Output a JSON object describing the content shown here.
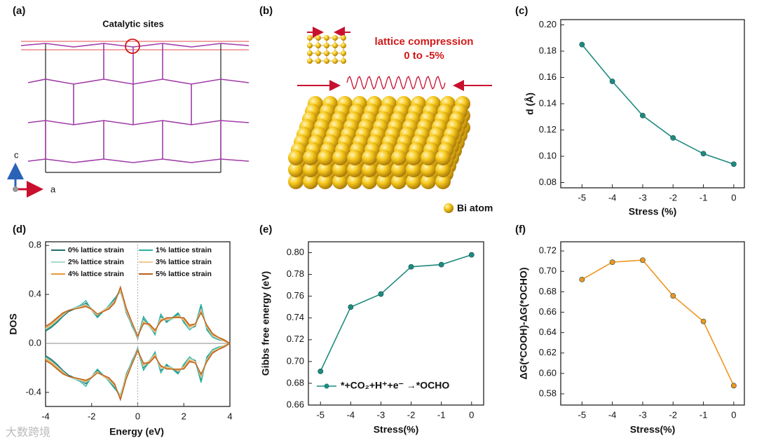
{
  "figure": {
    "panel_labels": [
      "(a)",
      "(b)",
      "(c)",
      "(d)",
      "(e)",
      "(f)"
    ],
    "a": {
      "title": "Catalytic sites",
      "axis_c": "c",
      "axis_a": "a"
    },
    "b": {
      "annotation": "lattice compression",
      "range": "0 to -5%",
      "legend": "Bi atom"
    },
    "watermark": "大数跨境"
  },
  "chart_data": [
    {
      "type": "line",
      "xlabel": "Stress (%)",
      "ylabel": "d (Å)",
      "color": "#1f8a80",
      "x": [
        -5,
        -4,
        -3,
        -2,
        -1,
        0
      ],
      "values": [
        0.185,
        0.157,
        0.131,
        0.114,
        0.102,
        0.094
      ],
      "xlim": [
        -5.7,
        0.35
      ],
      "ylim": [
        0.076,
        0.204
      ],
      "xticks": [
        -5,
        -4,
        -3,
        -2,
        -1,
        0
      ],
      "yticks": [
        0.08,
        {
          "value": 0.1,
          "label": "0.10"
        },
        0.12,
        0.14,
        0.16,
        0.18,
        {
          "value": 0.2,
          "label": "0.20"
        }
      ]
    },
    {
      "type": "dos",
      "xlabel": "Energy (eV)",
      "ylabel": "DOS",
      "x": [
        -4,
        -3.75,
        -3.5,
        -3.25,
        -3,
        -2.75,
        -2.5,
        -2.25,
        -2,
        -1.75,
        -1.5,
        -1.25,
        -1,
        -0.75,
        -0.5,
        -0.25,
        0,
        0.25,
        0.5,
        0.75,
        1,
        1.25,
        1.5,
        1.75,
        2,
        2.25,
        2.5,
        2.75,
        3,
        3.25,
        3.5,
        3.75,
        4
      ],
      "xlim": [
        -4,
        4
      ],
      "ylim": [
        -0.515,
        0.83
      ],
      "xticks": [
        -4,
        -2,
        0,
        2,
        4
      ],
      "yticks": [
        -0.4,
        {
          "value": 0,
          "label": "0.0"
        },
        0.4,
        0.8
      ],
      "series": [
        {
          "name": "0% lattice strain",
          "color": "#1d6f6a",
          "values": [
            0.1,
            0.13,
            0.17,
            0.22,
            0.26,
            0.28,
            0.3,
            0.33,
            0.28,
            0.22,
            0.27,
            0.3,
            0.36,
            0.44,
            0.25,
            0.15,
            0.04,
            0.2,
            0.14,
            0.08,
            0.22,
            0.18,
            0.2,
            0.24,
            0.18,
            0.12,
            0.14,
            0.3,
            0.12,
            0.06,
            0.04,
            0.02,
            0.0
          ],
          "values_down": [
            -0.1,
            -0.13,
            -0.17,
            -0.22,
            -0.26,
            -0.28,
            -0.3,
            -0.33,
            -0.28,
            -0.22,
            -0.27,
            -0.3,
            -0.36,
            -0.44,
            -0.25,
            -0.15,
            -0.04,
            -0.2,
            -0.14,
            -0.08,
            -0.22,
            -0.18,
            -0.2,
            -0.24,
            -0.18,
            -0.12,
            -0.14,
            -0.3,
            -0.12,
            -0.06,
            -0.04,
            -0.02,
            0.0
          ]
        },
        {
          "name": "1% lattice strain",
          "color": "#2bb3a3",
          "values": [
            0.11,
            0.14,
            0.18,
            0.23,
            0.27,
            0.29,
            0.31,
            0.35,
            0.27,
            0.21,
            0.26,
            0.31,
            0.37,
            0.42,
            0.27,
            0.14,
            0.05,
            0.22,
            0.15,
            0.07,
            0.24,
            0.17,
            0.21,
            0.25,
            0.17,
            0.11,
            0.15,
            0.32,
            0.11,
            0.05,
            0.03,
            0.02,
            0.0
          ],
          "values_down": [
            -0.11,
            -0.14,
            -0.18,
            -0.23,
            -0.27,
            -0.29,
            -0.31,
            -0.35,
            -0.27,
            -0.21,
            -0.26,
            -0.31,
            -0.37,
            -0.42,
            -0.27,
            -0.14,
            -0.05,
            -0.22,
            -0.15,
            -0.07,
            -0.24,
            -0.17,
            -0.21,
            -0.25,
            -0.17,
            -0.11,
            -0.15,
            -0.32,
            -0.11,
            -0.05,
            -0.03,
            -0.02,
            0.0
          ]
        },
        {
          "name": "2% lattice strain",
          "color": "#a6dccd",
          "values": [
            0.12,
            0.15,
            0.19,
            0.23,
            0.27,
            0.29,
            0.3,
            0.32,
            0.28,
            0.23,
            0.27,
            0.3,
            0.35,
            0.43,
            0.26,
            0.16,
            0.05,
            0.19,
            0.14,
            0.09,
            0.21,
            0.19,
            0.2,
            0.23,
            0.19,
            0.12,
            0.15,
            0.28,
            0.13,
            0.06,
            0.04,
            0.02,
            0.0
          ],
          "values_down": [
            -0.12,
            -0.15,
            -0.19,
            -0.23,
            -0.27,
            -0.29,
            -0.3,
            -0.32,
            -0.28,
            -0.23,
            -0.27,
            -0.3,
            -0.35,
            -0.43,
            -0.26,
            -0.16,
            -0.05,
            -0.19,
            -0.14,
            -0.09,
            -0.21,
            -0.19,
            -0.2,
            -0.23,
            -0.19,
            -0.12,
            -0.15,
            -0.28,
            -0.13,
            -0.06,
            -0.04,
            -0.02,
            0.0
          ]
        },
        {
          "name": "3% lattice strain",
          "color": "#f2c796",
          "values": [
            0.12,
            0.15,
            0.19,
            0.24,
            0.27,
            0.28,
            0.3,
            0.31,
            0.27,
            0.23,
            0.27,
            0.29,
            0.34,
            0.44,
            0.27,
            0.16,
            0.05,
            0.18,
            0.15,
            0.09,
            0.2,
            0.19,
            0.21,
            0.22,
            0.19,
            0.13,
            0.15,
            0.27,
            0.14,
            0.07,
            0.04,
            0.02,
            0.0
          ],
          "values_down": [
            -0.12,
            -0.15,
            -0.19,
            -0.24,
            -0.27,
            -0.28,
            -0.3,
            -0.31,
            -0.27,
            -0.23,
            -0.27,
            -0.29,
            -0.34,
            -0.44,
            -0.27,
            -0.16,
            -0.05,
            -0.18,
            -0.15,
            -0.09,
            -0.2,
            -0.19,
            -0.21,
            -0.22,
            -0.19,
            -0.13,
            -0.15,
            -0.27,
            -0.14,
            -0.07,
            -0.04,
            -0.02,
            0.0
          ]
        },
        {
          "name": "4% lattice strain",
          "color": "#e8953a",
          "values": [
            0.13,
            0.16,
            0.2,
            0.24,
            0.27,
            0.28,
            0.29,
            0.31,
            0.28,
            0.24,
            0.26,
            0.29,
            0.34,
            0.45,
            0.28,
            0.17,
            0.06,
            0.17,
            0.15,
            0.1,
            0.19,
            0.2,
            0.21,
            0.22,
            0.2,
            0.14,
            0.16,
            0.26,
            0.14,
            0.07,
            0.05,
            0.02,
            0.0
          ],
          "values_down": [
            -0.13,
            -0.16,
            -0.2,
            -0.24,
            -0.27,
            -0.28,
            -0.29,
            -0.31,
            -0.28,
            -0.24,
            -0.26,
            -0.29,
            -0.34,
            -0.45,
            -0.28,
            -0.17,
            -0.06,
            -0.17,
            -0.15,
            -0.1,
            -0.19,
            -0.2,
            -0.21,
            -0.22,
            -0.2,
            -0.14,
            -0.16,
            -0.26,
            -0.14,
            -0.07,
            -0.05,
            -0.02,
            0.0
          ]
        },
        {
          "name": "5% lattice strain",
          "color": "#b8621c",
          "values": [
            0.14,
            0.17,
            0.21,
            0.25,
            0.27,
            0.28,
            0.29,
            0.3,
            0.28,
            0.24,
            0.26,
            0.28,
            0.33,
            0.46,
            0.29,
            0.17,
            0.06,
            0.16,
            0.16,
            0.11,
            0.18,
            0.21,
            0.21,
            0.21,
            0.21,
            0.15,
            0.16,
            0.25,
            0.15,
            0.08,
            0.05,
            0.03,
            0.0
          ],
          "values_down": [
            -0.14,
            -0.17,
            -0.21,
            -0.25,
            -0.27,
            -0.28,
            -0.29,
            -0.3,
            -0.28,
            -0.24,
            -0.26,
            -0.28,
            -0.33,
            -0.46,
            -0.29,
            -0.17,
            -0.06,
            -0.16,
            -0.16,
            -0.11,
            -0.18,
            -0.21,
            -0.21,
            -0.21,
            -0.21,
            -0.15,
            -0.16,
            -0.25,
            -0.15,
            -0.08,
            -0.05,
            -0.03,
            0.0
          ]
        }
      ]
    },
    {
      "type": "line",
      "xlabel": "Stress(%)",
      "ylabel": "Gibbs free energy (eV)",
      "x": [
        -5,
        -4,
        -3,
        -2,
        -1,
        0
      ],
      "series": [
        {
          "name": "*+CO₂+H⁺+e⁻ →*OCHO",
          "color": "#1f8a80",
          "values": [
            0.691,
            0.75,
            0.762,
            0.787,
            0.789,
            0.798
          ]
        }
      ],
      "xlim": [
        -5.4,
        0.4
      ],
      "ylim": [
        0.66,
        0.81
      ],
      "xticks": [
        -5,
        -4,
        -3,
        -2,
        -1,
        0
      ],
      "yticks": [
        0.66,
        0.68,
        {
          "value": 0.7,
          "label": "0.70"
        },
        0.72,
        0.74,
        0.76,
        0.78,
        {
          "value": 0.8,
          "label": "0.80"
        }
      ]
    },
    {
      "type": "line",
      "xlabel": "Stress(%)",
      "ylabel": "ΔG(*COOH)-ΔG(*OCHO)",
      "color": "#f0951e",
      "x": [
        -5,
        -4,
        -3,
        -2,
        -1,
        0
      ],
      "values": [
        0.692,
        0.709,
        0.711,
        0.676,
        0.651,
        0.588
      ],
      "xlim": [
        -5.7,
        0.35
      ],
      "ylim": [
        0.569,
        0.729
      ],
      "xticks": [
        -5,
        -4,
        -3,
        -2,
        -1,
        0
      ],
      "yticks": [
        0.58,
        {
          "value": 0.6,
          "label": "0.60"
        },
        0.62,
        0.64,
        0.66,
        0.68,
        {
          "value": 0.7,
          "label": "0.70"
        },
        0.72
      ]
    }
  ]
}
